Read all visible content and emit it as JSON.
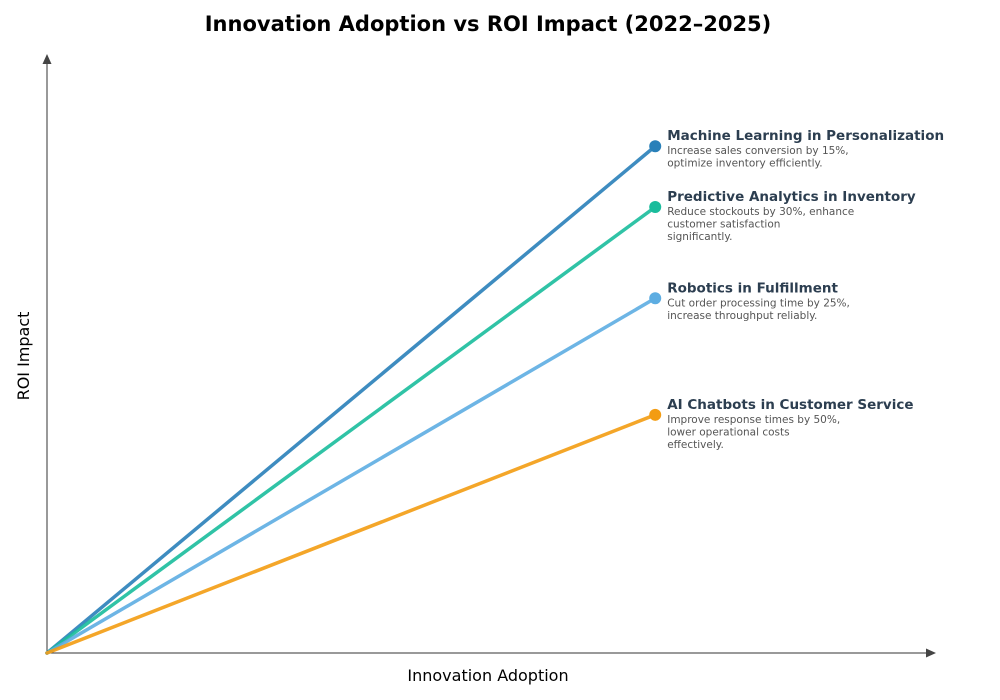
{
  "chart_data": {
    "type": "line",
    "title": "Innovation Adoption vs ROI Impact (2022–2025)",
    "xlabel": "Innovation Adoption",
    "ylabel": "ROI Impact",
    "xlim": [
      0,
      1.46
    ],
    "ylim": [
      0,
      1.18
    ],
    "grid": false,
    "ticks": false,
    "series": [
      {
        "name": "Machine Learning in Personalization",
        "x": [
          0,
          1
        ],
        "y": [
          0,
          1.0
        ],
        "color": "#2980b9",
        "description": [
          "Increase sales conversion by 15%,",
          "optimize inventory efficiently."
        ]
      },
      {
        "name": "Predictive Analytics in Inventory",
        "x": [
          0,
          1
        ],
        "y": [
          0,
          0.88
        ],
        "color": "#1abc9c",
        "description": [
          "Reduce stockouts by 30%, enhance",
          "customer satisfaction",
          "significantly."
        ]
      },
      {
        "name": "Robotics in Fulfillment",
        "x": [
          0,
          1
        ],
        "y": [
          0,
          0.7
        ],
        "color": "#5dade2",
        "description": [
          "Cut order processing time by 25%,",
          "increase throughput reliably."
        ]
      },
      {
        "name": "AI Chatbots in Customer Service",
        "x": [
          0,
          1
        ],
        "y": [
          0,
          0.47
        ],
        "color": "#f39c12",
        "description": [
          "Improve response times by 50%,",
          "lower operational costs",
          "effectively."
        ]
      }
    ]
  }
}
